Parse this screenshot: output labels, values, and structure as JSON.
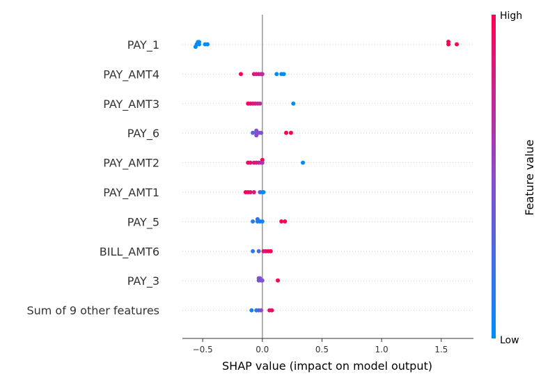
{
  "chart_data": {
    "type": "scatter",
    "title": "",
    "xlabel": "SHAP value (impact on model output)",
    "xlim": [
      -0.67,
      1.77
    ],
    "xticks": [
      -0.5,
      0.0,
      0.5,
      1.0,
      1.5
    ],
    "xtick_labels": [
      "−0.5",
      "0.0",
      "0.5",
      "1.0",
      "1.5"
    ],
    "zero_line": 0,
    "colorbar": {
      "label": "Feature value",
      "high": "High",
      "low": "Low"
    },
    "colors": {
      "low": "#008bfb",
      "high": "#ff0052",
      "axis": "#333333",
      "grid": "#cccccc",
      "zero": "#999999"
    },
    "features": [
      {
        "name": "PAY_1",
        "points": [
          {
            "x": -0.54,
            "dy": -0.18,
            "c": 0.0
          },
          {
            "x": -0.53,
            "dy": -0.18,
            "c": 0.0
          },
          {
            "x": -0.55,
            "dy": -0.02,
            "c": 0.0
          },
          {
            "x": -0.53,
            "dy": -0.02,
            "c": 0.0
          },
          {
            "x": -0.48,
            "dy": -0.02,
            "c": 0.0
          },
          {
            "x": -0.46,
            "dy": -0.02,
            "c": 0.0
          },
          {
            "x": -0.56,
            "dy": 0.16,
            "c": 0.0
          },
          {
            "x": 1.56,
            "dy": -0.2,
            "c": 1.0
          },
          {
            "x": 1.56,
            "dy": -0.02,
            "c": 1.0
          },
          {
            "x": 1.63,
            "dy": -0.02,
            "c": 1.0
          }
        ]
      },
      {
        "name": "PAY_AMT4",
        "points": [
          {
            "x": -0.18,
            "dy": 0.0,
            "c": 1.0
          },
          {
            "x": -0.07,
            "dy": 0.0,
            "c": 0.85
          },
          {
            "x": -0.05,
            "dy": 0.0,
            "c": 0.8
          },
          {
            "x": -0.03,
            "dy": 0.0,
            "c": 0.8
          },
          {
            "x": -0.01,
            "dy": 0.0,
            "c": 0.75
          },
          {
            "x": 0.0,
            "dy": 0.0,
            "c": 0.7
          },
          {
            "x": 0.12,
            "dy": 0.0,
            "c": 0.0
          },
          {
            "x": 0.16,
            "dy": 0.0,
            "c": 0.05
          },
          {
            "x": 0.18,
            "dy": 0.0,
            "c": 0.0
          }
        ]
      },
      {
        "name": "PAY_AMT3",
        "points": [
          {
            "x": -0.12,
            "dy": 0.0,
            "c": 0.95
          },
          {
            "x": -0.1,
            "dy": 0.0,
            "c": 0.9
          },
          {
            "x": -0.08,
            "dy": 0.0,
            "c": 0.85
          },
          {
            "x": -0.06,
            "dy": 0.0,
            "c": 0.8
          },
          {
            "x": -0.04,
            "dy": 0.0,
            "c": 0.75
          },
          {
            "x": -0.02,
            "dy": 0.0,
            "c": 0.7
          },
          {
            "x": 0.26,
            "dy": 0.0,
            "c": 0.0
          }
        ]
      },
      {
        "name": "PAY_6",
        "points": [
          {
            "x": -0.05,
            "dy": -0.18,
            "c": 0.5
          },
          {
            "x": -0.08,
            "dy": -0.02,
            "c": 0.3
          },
          {
            "x": -0.05,
            "dy": -0.02,
            "c": 0.45
          },
          {
            "x": -0.03,
            "dy": -0.02,
            "c": 0.5
          },
          {
            "x": -0.01,
            "dy": -0.02,
            "c": 0.45
          },
          {
            "x": -0.05,
            "dy": 0.16,
            "c": 0.5
          },
          {
            "x": 0.2,
            "dy": -0.02,
            "c": 1.0
          },
          {
            "x": 0.24,
            "dy": -0.02,
            "c": 1.0
          }
        ]
      },
      {
        "name": "PAY_AMT2",
        "points": [
          {
            "x": 0.0,
            "dy": -0.2,
            "c": 1.0
          },
          {
            "x": -0.12,
            "dy": 0.0,
            "c": 0.95
          },
          {
            "x": -0.1,
            "dy": 0.0,
            "c": 0.9
          },
          {
            "x": -0.07,
            "dy": 0.0,
            "c": 0.85
          },
          {
            "x": -0.05,
            "dy": 0.0,
            "c": 0.8
          },
          {
            "x": -0.03,
            "dy": 0.0,
            "c": 0.75
          },
          {
            "x": -0.01,
            "dy": 0.0,
            "c": 0.7
          },
          {
            "x": 0.0,
            "dy": 0.0,
            "c": 0.65
          },
          {
            "x": 0.34,
            "dy": 0.0,
            "c": 0.0
          }
        ]
      },
      {
        "name": "PAY_AMT1",
        "points": [
          {
            "x": -0.14,
            "dy": 0.0,
            "c": 1.0
          },
          {
            "x": -0.12,
            "dy": 0.0,
            "c": 0.95
          },
          {
            "x": -0.1,
            "dy": 0.0,
            "c": 0.9
          },
          {
            "x": -0.07,
            "dy": 0.0,
            "c": 0.85
          },
          {
            "x": -0.02,
            "dy": 0.0,
            "c": 0.3
          },
          {
            "x": 0.0,
            "dy": 0.0,
            "c": 0.1
          },
          {
            "x": 0.01,
            "dy": 0.0,
            "c": 0.0
          }
        ]
      },
      {
        "name": "PAY_5",
        "points": [
          {
            "x": -0.04,
            "dy": -0.18,
            "c": 0.2
          },
          {
            "x": -0.08,
            "dy": -0.02,
            "c": 0.1
          },
          {
            "x": -0.04,
            "dy": -0.02,
            "c": 0.15
          },
          {
            "x": -0.02,
            "dy": -0.02,
            "c": 0.1
          },
          {
            "x": 0.0,
            "dy": -0.02,
            "c": 0.05
          },
          {
            "x": 0.16,
            "dy": -0.02,
            "c": 1.0
          },
          {
            "x": 0.19,
            "dy": -0.02,
            "c": 1.0
          }
        ]
      },
      {
        "name": "BILL_AMT6",
        "points": [
          {
            "x": -0.08,
            "dy": 0.0,
            "c": 0.15
          },
          {
            "x": -0.03,
            "dy": 0.0,
            "c": 0.3
          },
          {
            "x": 0.01,
            "dy": 0.0,
            "c": 0.85
          },
          {
            "x": 0.03,
            "dy": 0.0,
            "c": 0.9
          },
          {
            "x": 0.05,
            "dy": 0.0,
            "c": 0.95
          },
          {
            "x": 0.07,
            "dy": 0.0,
            "c": 1.0
          }
        ]
      },
      {
        "name": "PAY_3",
        "points": [
          {
            "x": -0.03,
            "dy": -0.18,
            "c": 0.45
          },
          {
            "x": -0.02,
            "dy": -0.18,
            "c": 0.5
          },
          {
            "x": -0.03,
            "dy": -0.02,
            "c": 0.45
          },
          {
            "x": -0.01,
            "dy": -0.02,
            "c": 0.4
          },
          {
            "x": 0.0,
            "dy": -0.02,
            "c": 0.45
          },
          {
            "x": 0.13,
            "dy": -0.02,
            "c": 1.0
          }
        ]
      },
      {
        "name": "Sum of 9 other features",
        "points": [
          {
            "x": -0.09,
            "dy": 0.0,
            "c": 0.05
          },
          {
            "x": -0.05,
            "dy": 0.0,
            "c": 0.1
          },
          {
            "x": -0.03,
            "dy": 0.0,
            "c": 0.3
          },
          {
            "x": -0.01,
            "dy": 0.0,
            "c": 0.5
          },
          {
            "x": 0.06,
            "dy": 0.0,
            "c": 0.9
          },
          {
            "x": 0.08,
            "dy": 0.0,
            "c": 0.95
          }
        ]
      }
    ]
  }
}
